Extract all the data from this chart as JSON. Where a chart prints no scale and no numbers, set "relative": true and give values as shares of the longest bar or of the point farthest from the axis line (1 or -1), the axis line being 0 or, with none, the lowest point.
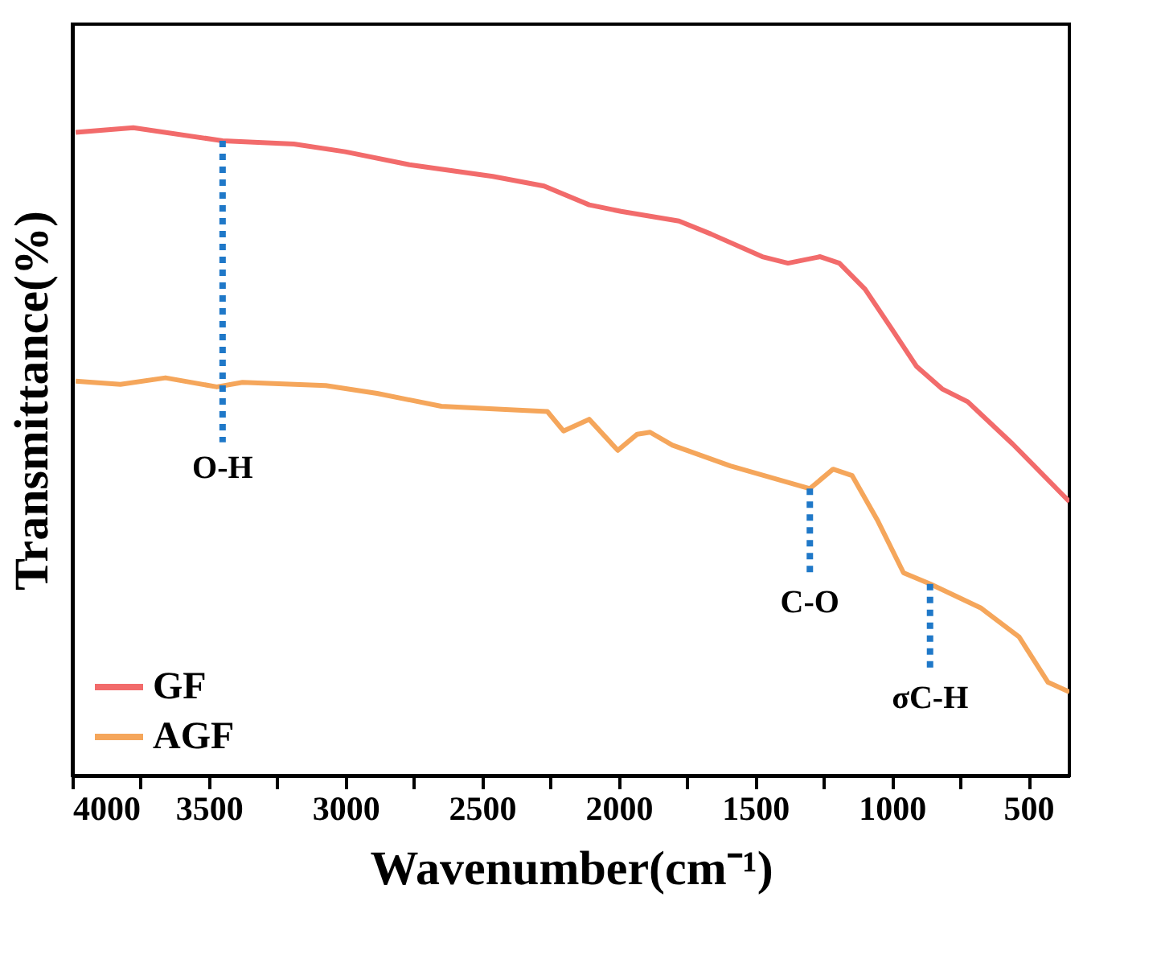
{
  "chart_data": {
    "type": "line",
    "relative": true,
    "xlabel": "Wavenumber(cm⁻¹)",
    "ylabel": "Transmittance(%)",
    "xlim": [
      4000,
      350
    ],
    "xticks": [
      4000,
      {
        "value": 3750,
        "label": null
      },
      3500,
      {
        "value": 3250,
        "label": null
      },
      3000,
      {
        "value": 2750,
        "label": null
      },
      2500,
      {
        "value": 2250,
        "label": null
      },
      2000,
      {
        "value": 1750,
        "label": null
      },
      1500,
      {
        "value": 1250,
        "label": null
      },
      1000,
      {
        "value": 750,
        "label": null
      },
      500
    ],
    "tick_labels": "x",
    "grid": false,
    "legend": "bottom left",
    "marker": "none",
    "line_style": "solid",
    "series": [
      {
        "name": "GF",
        "color": "#f26b6b",
        "x": [
          3988,
          3777,
          3450,
          3189,
          3001,
          2766,
          2461,
          2273,
          2108,
          1991,
          1779,
          1662,
          1474,
          1380,
          1262,
          1192,
          1098,
          1004,
          910,
          816,
          722,
          558,
          350
        ],
        "values": [
          0.993,
          1.0,
          0.98,
          0.975,
          0.963,
          0.943,
          0.925,
          0.91,
          0.881,
          0.871,
          0.856,
          0.836,
          0.801,
          0.791,
          0.801,
          0.791,
          0.751,
          0.692,
          0.632,
          0.597,
          0.577,
          0.512,
          0.423
        ]
      },
      {
        "name": "AGF",
        "color": "#f5a65b",
        "x": [
          3988,
          3824,
          3659,
          3471,
          3377,
          3072,
          2884,
          2649,
          2414,
          2261,
          2202,
          2108,
          2003,
          1932,
          1885,
          1803,
          1591,
          1300,
          1215,
          1145,
          1051,
          957,
          860,
          675,
          534,
          428,
          350
        ],
        "values": [
          0.609,
          0.604,
          0.614,
          0.6,
          0.607,
          0.602,
          0.59,
          0.57,
          0.565,
          0.562,
          0.532,
          0.55,
          0.502,
          0.527,
          0.53,
          0.51,
          0.478,
          0.443,
          0.473,
          0.463,
          0.393,
          0.313,
          0.296,
          0.259,
          0.214,
          0.144,
          0.129
        ]
      }
    ],
    "annotations": [
      {
        "text": "O-H",
        "x": 3450,
        "y": 0.98
      },
      {
        "text": "C-O",
        "x": 1300,
        "y": 0.443
      },
      {
        "text": "σC-H",
        "x": 860,
        "y": 0.296
      }
    ]
  }
}
